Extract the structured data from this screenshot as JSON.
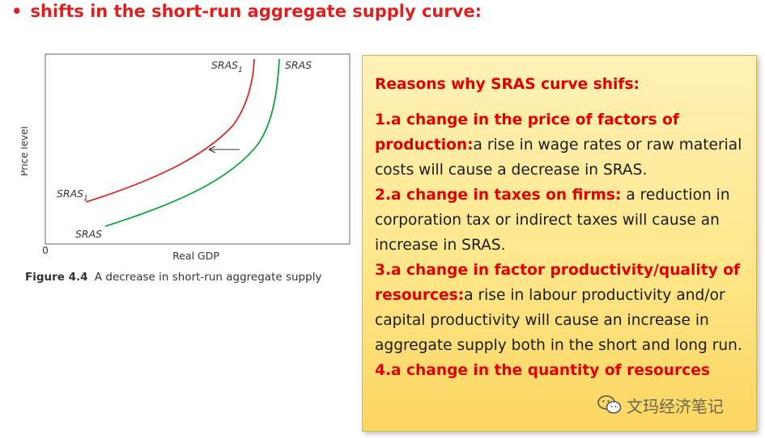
{
  "heading": {
    "bullet": "•",
    "text": "shifts in the short-run aggregate supply curve:"
  },
  "figure": {
    "y_axis_label": "Price level",
    "x_axis_label": "Real GDP",
    "origin_label": "0",
    "curve_labels": {
      "sras1_top_base": "SRAS",
      "sras1_top_sub": "1",
      "sras_top": "SRAS",
      "sras1_bottom_base": "SRAS",
      "sras1_bottom_sub": "1",
      "sras_bottom": "SRAS"
    },
    "colors": {
      "sras1": "#d42a2a",
      "sras": "#13a040",
      "arrow": "#333333"
    },
    "caption_label": "Figure 4.4",
    "caption_text": "A decrease in short-run aggregate supply"
  },
  "note": {
    "title": "Reasons why SRAS curve shifs:",
    "items": [
      {
        "lead": "1.a change in the price of factors of production:",
        "text": "a rise in wage rates or raw material costs will cause a decrease in SRAS."
      },
      {
        "lead": "2.a change in taxes on firms:",
        "text": " a reduction in corporation tax or indirect taxes will cause an increase in SRAS."
      },
      {
        "lead": "3.a change in factor productivity/quality of resources:",
        "text": "a rise in labour productivity and/or capital productivity will cause an increase in aggregate supply both in the short and long run."
      },
      {
        "lead": "4.a change in the quantity of resources",
        "text": ""
      }
    ]
  },
  "watermark": {
    "icon": "wechat-icon",
    "text": "文玛经济笔记"
  }
}
